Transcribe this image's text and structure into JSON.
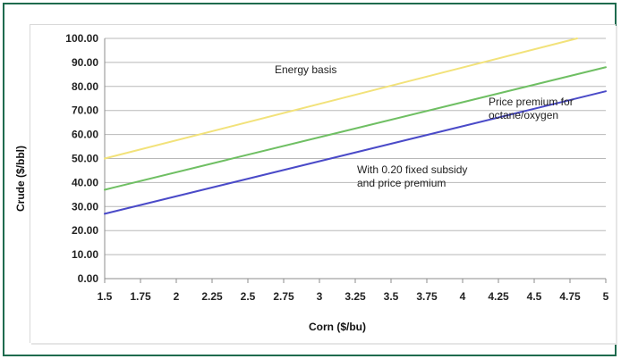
{
  "chart_data": {
    "type": "line",
    "xlabel": "Corn ($/bu)",
    "ylabel": "Crude ($/bbl)",
    "x": [
      1.5,
      1.75,
      2,
      2.25,
      2.5,
      2.75,
      3,
      3.25,
      3.5,
      3.75,
      4,
      4.25,
      4.5,
      4.75,
      5
    ],
    "xtick_labels": [
      "1.5",
      "1.75",
      "2",
      "2.25",
      "2.5",
      "2.75",
      "3",
      "3.25",
      "3.5",
      "3.75",
      "4",
      "4.25",
      "4.5",
      "4.75",
      "5"
    ],
    "ylim": [
      0,
      100
    ],
    "ytick_labels": [
      "0.00",
      "10.00",
      "20.00",
      "30.00",
      "40.00",
      "50.00",
      "60.00",
      "70.00",
      "80.00",
      "90.00",
      "100.00"
    ],
    "grid": true,
    "series": [
      {
        "name": "Energy basis",
        "color": "#f2e27a",
        "start": [
          1.5,
          50
        ],
        "end": [
          4.8,
          100
        ]
      },
      {
        "name": "Price premium for octane/oxygen",
        "color": "#6fbf63",
        "start": [
          1.5,
          37
        ],
        "end": [
          5,
          88
        ]
      },
      {
        "name": "With 0.20 fixed subsidy and price premium",
        "color": "#4a4ac8",
        "start": [
          1.5,
          27
        ],
        "end": [
          5,
          78
        ]
      }
    ],
    "annotations": [
      {
        "lines": [
          "Energy basis"
        ],
        "series": 0
      },
      {
        "lines": [
          "Price premium for",
          "octane/oxygen"
        ],
        "series": 1
      },
      {
        "lines": [
          "With 0.20 fixed subsidy",
          "and price premium"
        ],
        "series": 2
      }
    ]
  }
}
